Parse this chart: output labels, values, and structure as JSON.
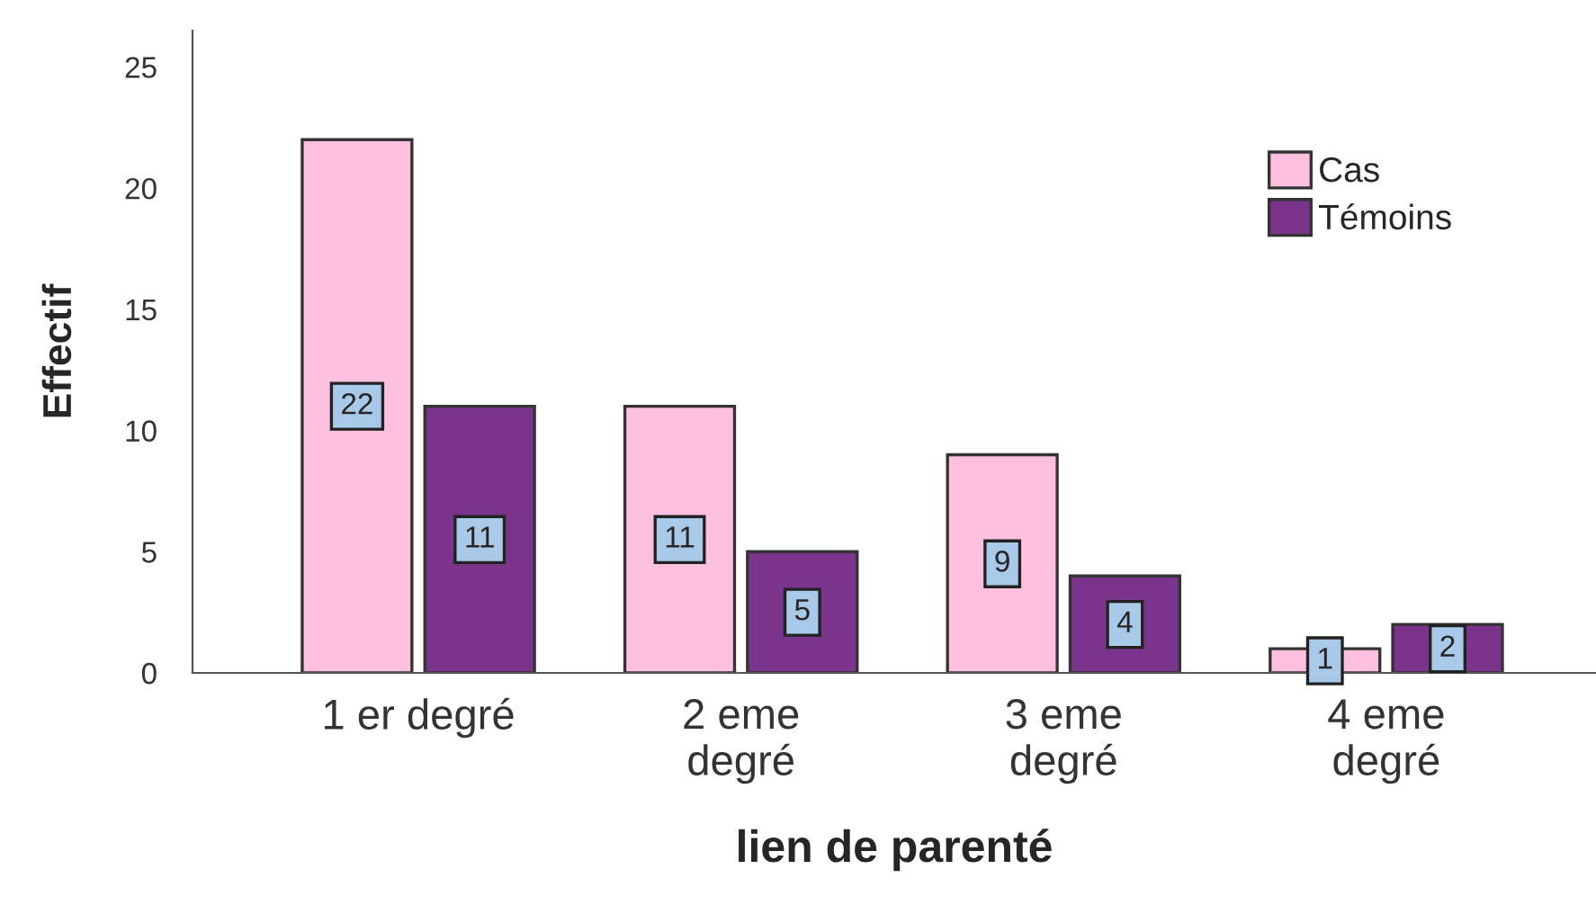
{
  "chart_data": {
    "type": "bar",
    "xlabel": "lien de parenté",
    "ylabel": "Effectif",
    "categories": [
      "1 er degré",
      "2 eme\ndegré",
      "3 eme\ndegré",
      "4 eme\ndegré"
    ],
    "series": [
      {
        "name": "Cas",
        "color": "#ffc0e0",
        "values": [
          22,
          11,
          9,
          1
        ]
      },
      {
        "name": "Témoins",
        "color": "#7a348c",
        "values": [
          11,
          5,
          4,
          2
        ]
      }
    ],
    "ylim": [
      0,
      26.5
    ],
    "yticks": [
      0,
      5,
      10,
      15,
      20,
      25
    ],
    "grid": false,
    "legend": "top right",
    "data_labels": true
  }
}
